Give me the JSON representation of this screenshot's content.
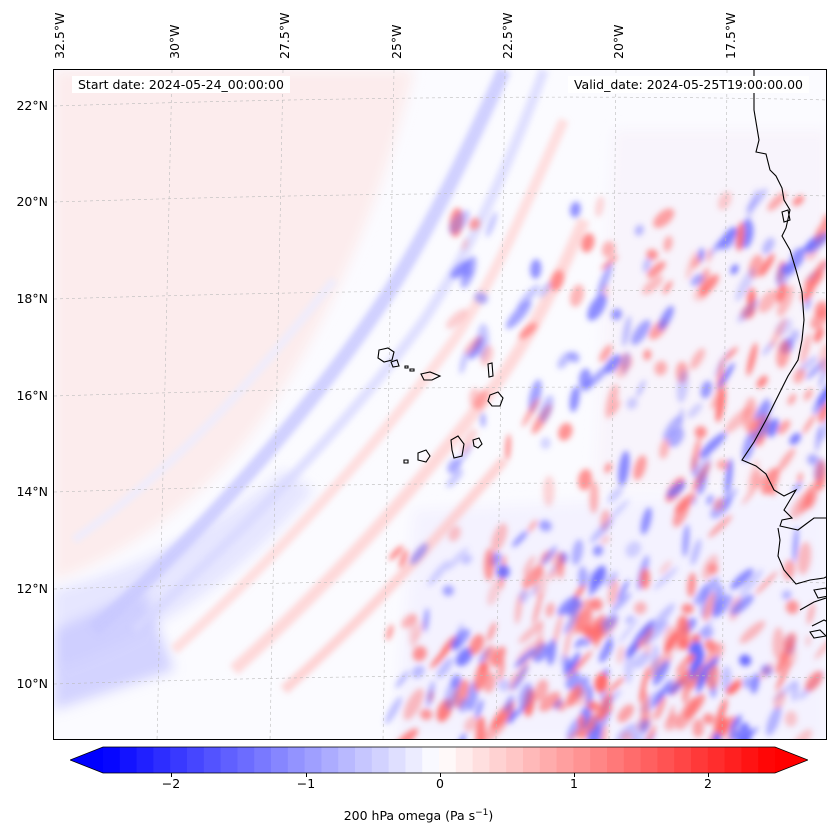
{
  "header": {
    "start_date": "Start date: 2024-05-24_00:00:00",
    "valid_date": "Valid_date: 2024-05-25T19:00:00.00"
  },
  "lon_labels": [
    "32.5°W",
    "30°W",
    "27.5°W",
    "25°W",
    "22.5°W",
    "20°W",
    "17.5°W"
  ],
  "lat_labels": [
    "22°N",
    "20°N",
    "18°N",
    "16°N",
    "14°N",
    "12°N",
    "10°N"
  ],
  "colorbar": {
    "label_prefix": "200 hPa omega (Pa s",
    "label_exp": "−1",
    "label_suffix": ")",
    "ticks": [
      "−2",
      "−1",
      "0",
      "1",
      "2"
    ],
    "min_color": "#0000ff",
    "mid_color": "#ffffff",
    "max_color": "#ff0000"
  }
}
